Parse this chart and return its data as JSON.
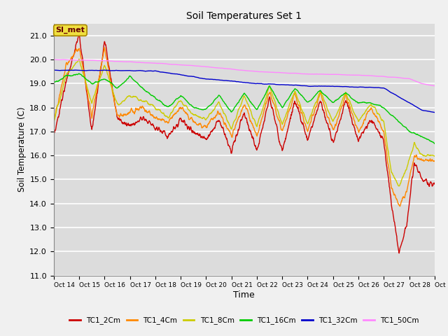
{
  "title": "Soil Temperatures Set 1",
  "xlabel": "Time",
  "ylabel": "Soil Temperature (C)",
  "ylim": [
    11.0,
    21.5
  ],
  "yticks": [
    11.0,
    12.0,
    13.0,
    14.0,
    15.0,
    16.0,
    17.0,
    18.0,
    19.0,
    20.0,
    21.0
  ],
  "legend_labels": [
    "TC1_2Cm",
    "TC1_4Cm",
    "TC1_8Cm",
    "TC1_16Cm",
    "TC1_32Cm",
    "TC1_50Cm"
  ],
  "colors": {
    "TC1_2Cm": "#cc0000",
    "TC1_4Cm": "#ff8800",
    "TC1_8Cm": "#cccc00",
    "TC1_16Cm": "#00cc00",
    "TC1_32Cm": "#0000cc",
    "TC1_50Cm": "#ff88ff"
  },
  "annotation_text": "SI_met",
  "bg_color": "#dcdcdc",
  "grid_color": "#ffffff",
  "n_points": 1440,
  "n_days": 15,
  "figwidth": 6.4,
  "figheight": 4.8,
  "dpi": 100
}
